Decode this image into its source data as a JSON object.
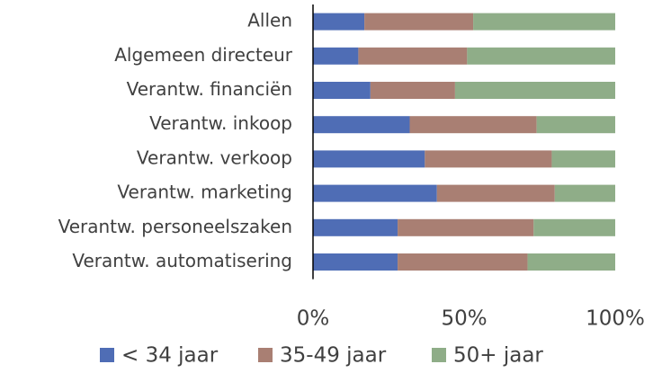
{
  "chart_data": {
    "type": "stacked-barh",
    "categories": [
      "Allen",
      "Algemeen directeur",
      "Verantw. financiën",
      "Verantw. inkoop",
      "Verantw. verkoop",
      "Verantw. marketing",
      "Verantw. personeelszaken",
      "Verantw. automatisering"
    ],
    "series": [
      {
        "name": "< 34 jaar",
        "color": "#4f6db5",
        "values": [
          17,
          15,
          19,
          32,
          37,
          41,
          28,
          28
        ]
      },
      {
        "name": "35-49 jaar",
        "color": "#a97f73",
        "values": [
          36,
          36,
          28,
          42,
          42,
          39,
          45,
          43
        ]
      },
      {
        "name": "50+ jaar",
        "color": "#8fad88",
        "values": [
          47,
          49,
          53,
          26,
          21,
          20,
          27,
          29
        ]
      }
    ],
    "xlim": [
      0,
      100
    ],
    "xticks": [
      {
        "value": 0,
        "label": "0%"
      },
      {
        "value": 50,
        "label": "50%"
      },
      {
        "value": 100,
        "label": "100%"
      }
    ],
    "legend": "bottom"
  }
}
